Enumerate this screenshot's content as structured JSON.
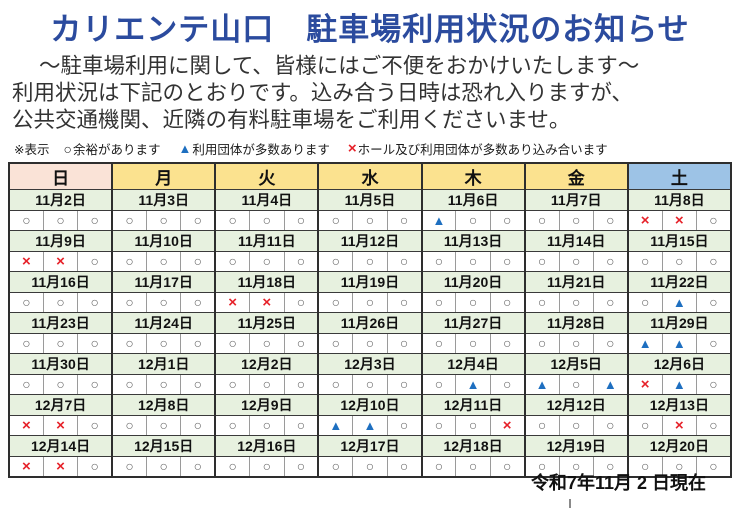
{
  "title": "カリエンテ山口　駐車場利用状況のお知らせ",
  "intro": {
    "lines": [
      "～駐車場利用に関して、皆様にはご不便をおかけいたします～",
      "利用状況は下記のとおりです。込み合う日時は恐れ入りますが、",
      "公共交通機関、近隣の有料駐車場をご利用くださいませ。"
    ]
  },
  "legend": {
    "prefix": "※表示",
    "items": [
      {
        "code": "o",
        "glyph": "○",
        "label": "余裕があります"
      },
      {
        "code": "t",
        "glyph": "▲",
        "label": "利用団体が多数あります"
      },
      {
        "code": "x",
        "glyph": "×",
        "label": "ホール及び利用団体が多数あり込み合います"
      }
    ]
  },
  "symbols": {
    "o": {
      "glyph": "○",
      "name": "circle-available-icon",
      "color": "#636363"
    },
    "t": {
      "glyph": "▲",
      "name": "triangle-busy-icon",
      "color": "#1E6FC0"
    },
    "x": {
      "glyph": "×",
      "name": "cross-crowded-icon",
      "color": "#E62129"
    }
  },
  "calendar": {
    "weekday_headers": [
      {
        "label": "日",
        "bg": "#FAE3D7"
      },
      {
        "label": "月",
        "bg": "#FBE28F"
      },
      {
        "label": "火",
        "bg": "#FBE28F"
      },
      {
        "label": "水",
        "bg": "#FBE28F"
      },
      {
        "label": "木",
        "bg": "#FBE28F"
      },
      {
        "label": "金",
        "bg": "#FBE28F"
      },
      {
        "label": "土",
        "bg": "#9DC3E6"
      }
    ],
    "weeks": [
      {
        "dates": [
          "11月2日",
          "11月3日",
          "11月4日",
          "11月5日",
          "11月6日",
          "11月7日",
          "11月8日"
        ],
        "slots": [
          [
            "o",
            "o",
            "o"
          ],
          [
            "o",
            "o",
            "o"
          ],
          [
            "o",
            "o",
            "o"
          ],
          [
            "o",
            "o",
            "o"
          ],
          [
            "t",
            "o",
            "o"
          ],
          [
            "o",
            "o",
            "o"
          ],
          [
            "x",
            "x",
            "o"
          ]
        ]
      },
      {
        "dates": [
          "11月9日",
          "11月10日",
          "11月11日",
          "11月12日",
          "11月13日",
          "11月14日",
          "11月15日"
        ],
        "slots": [
          [
            "x",
            "x",
            "o"
          ],
          [
            "o",
            "o",
            "o"
          ],
          [
            "o",
            "o",
            "o"
          ],
          [
            "o",
            "o",
            "o"
          ],
          [
            "o",
            "o",
            "o"
          ],
          [
            "o",
            "o",
            "o"
          ],
          [
            "o",
            "o",
            "o"
          ]
        ]
      },
      {
        "dates": [
          "11月16日",
          "11月17日",
          "11月18日",
          "11月19日",
          "11月20日",
          "11月21日",
          "11月22日"
        ],
        "slots": [
          [
            "o",
            "o",
            "o"
          ],
          [
            "o",
            "o",
            "o"
          ],
          [
            "x",
            "x",
            "o"
          ],
          [
            "o",
            "o",
            "o"
          ],
          [
            "o",
            "o",
            "o"
          ],
          [
            "o",
            "o",
            "o"
          ],
          [
            "o",
            "t",
            "o"
          ]
        ]
      },
      {
        "dates": [
          "11月23日",
          "11月24日",
          "11月25日",
          "11月26日",
          "11月27日",
          "11月28日",
          "11月29日"
        ],
        "slots": [
          [
            "o",
            "o",
            "o"
          ],
          [
            "o",
            "o",
            "o"
          ],
          [
            "o",
            "o",
            "o"
          ],
          [
            "o",
            "o",
            "o"
          ],
          [
            "o",
            "o",
            "o"
          ],
          [
            "o",
            "o",
            "o"
          ],
          [
            "t",
            "t",
            "o"
          ]
        ]
      },
      {
        "dates": [
          "11月30日",
          "12月1日",
          "12月2日",
          "12月3日",
          "12月4日",
          "12月5日",
          "12月6日"
        ],
        "slots": [
          [
            "o",
            "o",
            "o"
          ],
          [
            "o",
            "o",
            "o"
          ],
          [
            "o",
            "o",
            "o"
          ],
          [
            "o",
            "o",
            "o"
          ],
          [
            "o",
            "t",
            "o"
          ],
          [
            "t",
            "o",
            "t"
          ],
          [
            "x",
            "t",
            "o"
          ]
        ]
      },
      {
        "dates": [
          "12月7日",
          "12月8日",
          "12月9日",
          "12月10日",
          "12月11日",
          "12月12日",
          "12月13日"
        ],
        "slots": [
          [
            "x",
            "x",
            "o"
          ],
          [
            "o",
            "o",
            "o"
          ],
          [
            "o",
            "o",
            "o"
          ],
          [
            "t",
            "t",
            "o"
          ],
          [
            "o",
            "o",
            "x"
          ],
          [
            "o",
            "o",
            "o"
          ],
          [
            "o",
            "x",
            "o"
          ]
        ]
      },
      {
        "dates": [
          "12月14日",
          "12月15日",
          "12月16日",
          "12月17日",
          "12月18日",
          "12月19日",
          "12月20日"
        ],
        "slots": [
          [
            "x",
            "x",
            "o"
          ],
          [
            "o",
            "o",
            "o"
          ],
          [
            "o",
            "o",
            "o"
          ],
          [
            "o",
            "o",
            "o"
          ],
          [
            "o",
            "o",
            "o"
          ],
          [
            "o",
            "o",
            "o"
          ],
          [
            "o",
            "o",
            "o"
          ]
        ]
      }
    ]
  },
  "footer": {
    "as_of": "令和7年11月 2 日現在"
  }
}
